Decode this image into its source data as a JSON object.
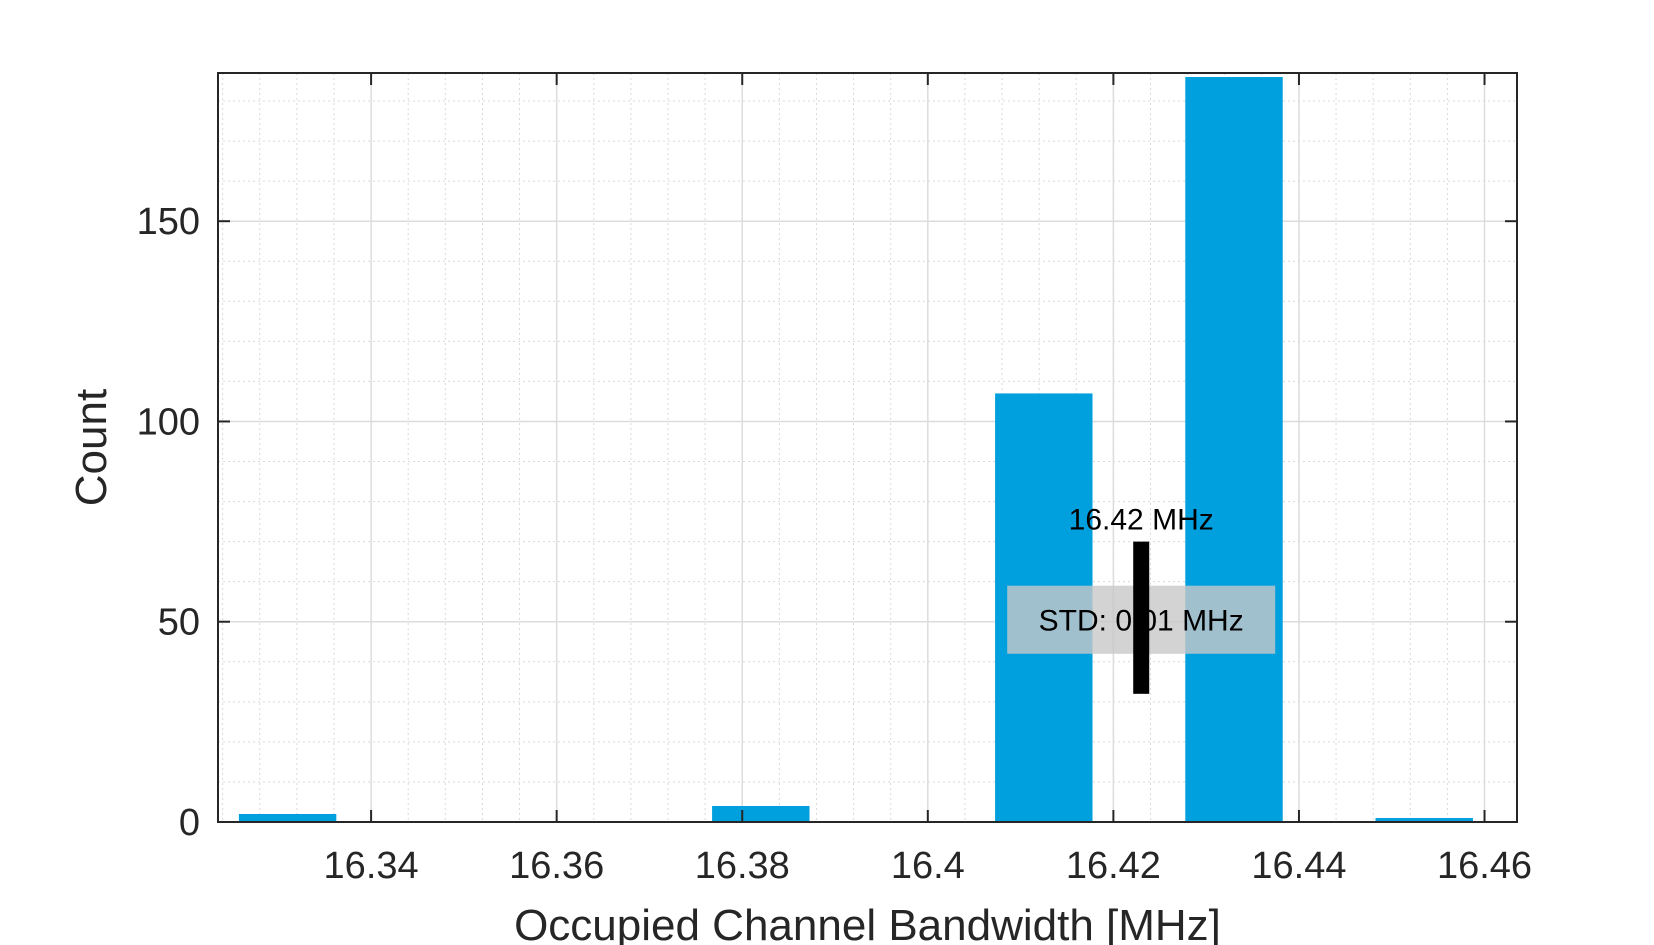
{
  "chart_data": {
    "type": "bar",
    "xlabel": "Occupied Channel Bandwidth [MHz]",
    "ylabel": "Count",
    "xlim": [
      16.3235,
      16.4635
    ],
    "ylim": [
      0,
      187
    ],
    "xticks": [
      16.34,
      16.36,
      16.38,
      16.4,
      16.42,
      16.44,
      16.46
    ],
    "xtick_labels": [
      "16.34",
      "16.36",
      "16.38",
      "16.4",
      "16.42",
      "16.44",
      "16.46"
    ],
    "yticks": [
      0,
      50,
      100,
      150
    ],
    "ytick_labels": [
      "0",
      "50",
      "100",
      "150"
    ],
    "bin_width": 0.0105,
    "bar_color": "#0072bd",
    "bars": [
      {
        "x": 16.331,
        "value": 2
      },
      {
        "x": 16.382,
        "value": 4
      },
      {
        "x": 16.4125,
        "value": 107
      },
      {
        "x": 16.433,
        "value": 186
      },
      {
        "x": 16.4535,
        "value": 1
      }
    ],
    "grid": true,
    "minor_grid": true,
    "annotation": {
      "mean_label": "16.42 MHz",
      "std_label": "STD: 0.01 MHz",
      "mean_x": 16.423,
      "errorbar_y": [
        32,
        70
      ],
      "std_box_y": [
        42,
        59
      ]
    }
  }
}
